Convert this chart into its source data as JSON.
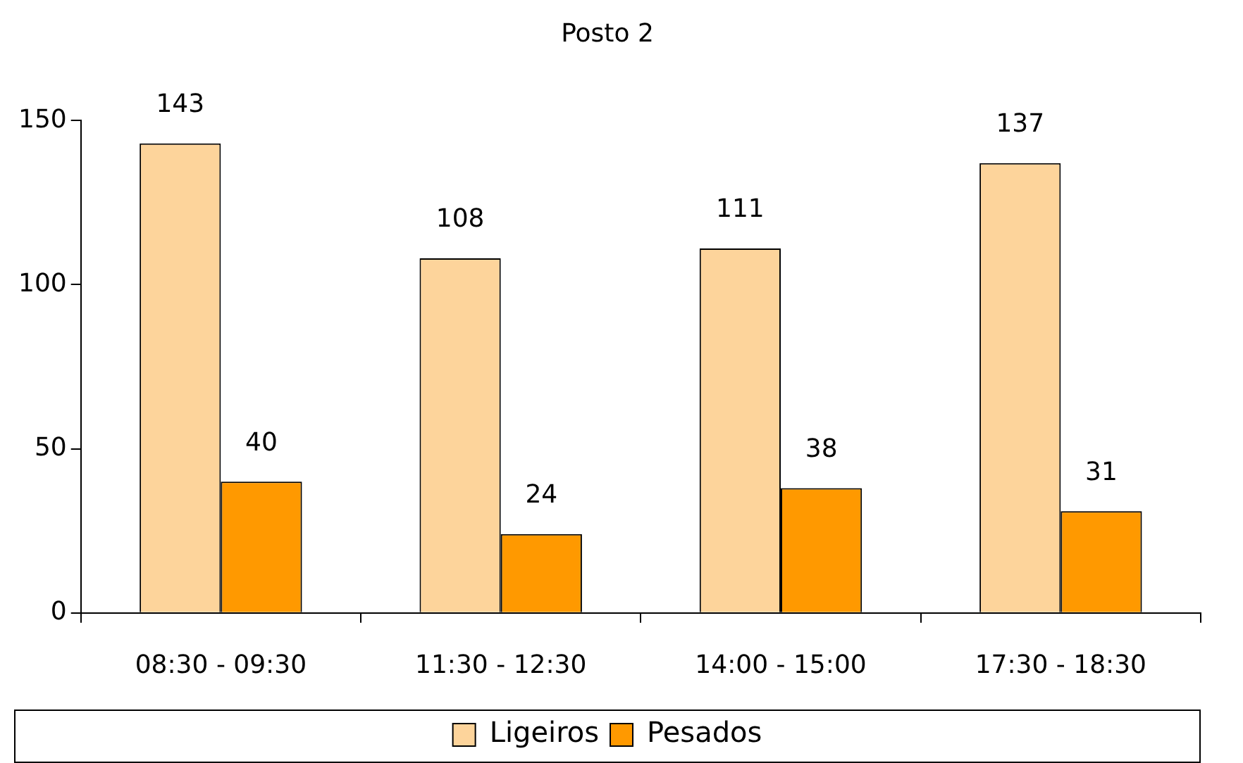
{
  "chart_data": {
    "type": "bar",
    "title": "Posto 2",
    "categories": [
      "08:30 - 09:30",
      "11:30 - 12:30",
      "14:00 - 15:00",
      "17:30 - 18:30"
    ],
    "series": [
      {
        "name": "Ligeiros",
        "color": "#fdd49b",
        "values": [
          143,
          108,
          111,
          137
        ]
      },
      {
        "name": "Pesados",
        "color": "#ff9900",
        "values": [
          40,
          24,
          38,
          31
        ]
      }
    ],
    "ylim": [
      0,
      150
    ],
    "yticks": [
      0,
      50,
      100,
      150
    ],
    "grid": false,
    "legend": "bottom",
    "data_labels": true
  }
}
